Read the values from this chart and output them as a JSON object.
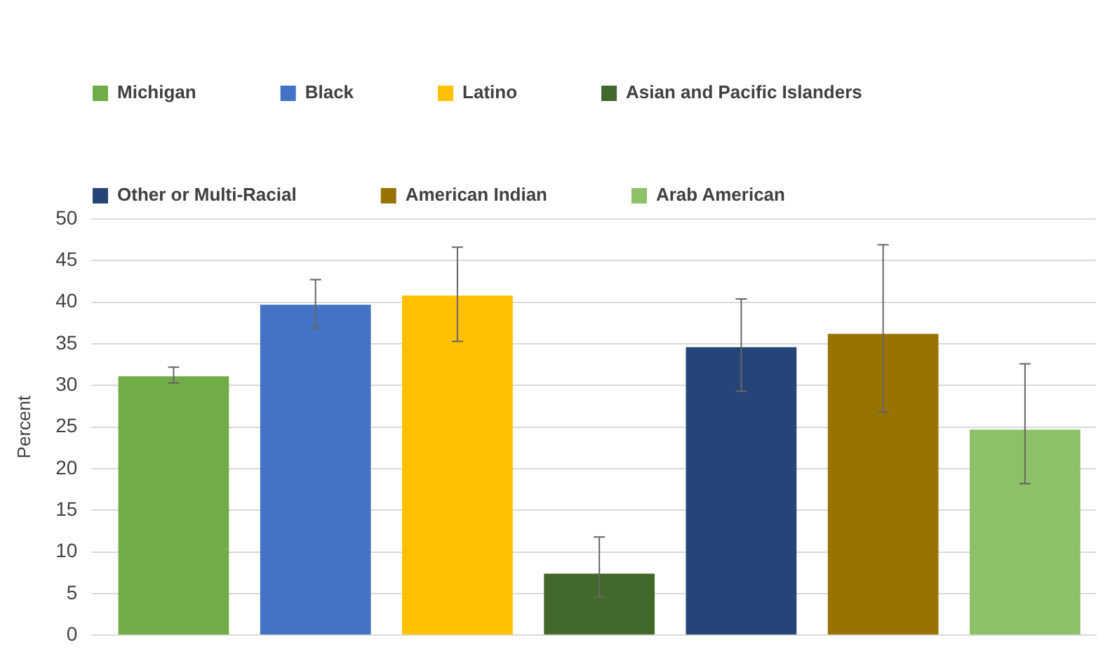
{
  "chart_data": {
    "type": "bar",
    "categories": [
      null
    ],
    "series": [
      {
        "name": "Michigan",
        "color": "#70ad47",
        "values": [
          31.1
        ],
        "errors": [
          [
            30.3,
            32.2
          ]
        ]
      },
      {
        "name": "Black",
        "color": "#4472c4",
        "values": [
          39.7
        ],
        "errors": [
          [
            36.9,
            42.7
          ]
        ]
      },
      {
        "name": "Latino",
        "color": "#ffc000",
        "values": [
          40.8
        ],
        "errors": [
          [
            35.3,
            46.6
          ]
        ]
      },
      {
        "name": "Asian and Pacific Islanders",
        "color": "#43682b",
        "values": [
          7.4
        ],
        "errors": [
          [
            4.6,
            11.8
          ]
        ]
      },
      {
        "name": "Other or Multi-Racial",
        "color": "#264478",
        "values": [
          34.6
        ],
        "errors": [
          [
            29.3,
            40.4
          ]
        ]
      },
      {
        "name": "American Indian",
        "color": "#997300",
        "values": [
          36.2
        ],
        "errors": [
          [
            26.8,
            46.9
          ]
        ]
      },
      {
        "name": "Arab American",
        "color": "#8cc168",
        "values": [
          24.7
        ],
        "errors": [
          [
            18.2,
            32.6
          ]
        ]
      }
    ],
    "ylabel": "Percent",
    "ylim": [
      0,
      50
    ],
    "yticks": [
      0,
      5,
      10,
      15,
      20,
      25,
      30,
      35,
      40,
      45,
      50
    ],
    "grid": "y",
    "legend": "top",
    "tick_labels": "y"
  }
}
